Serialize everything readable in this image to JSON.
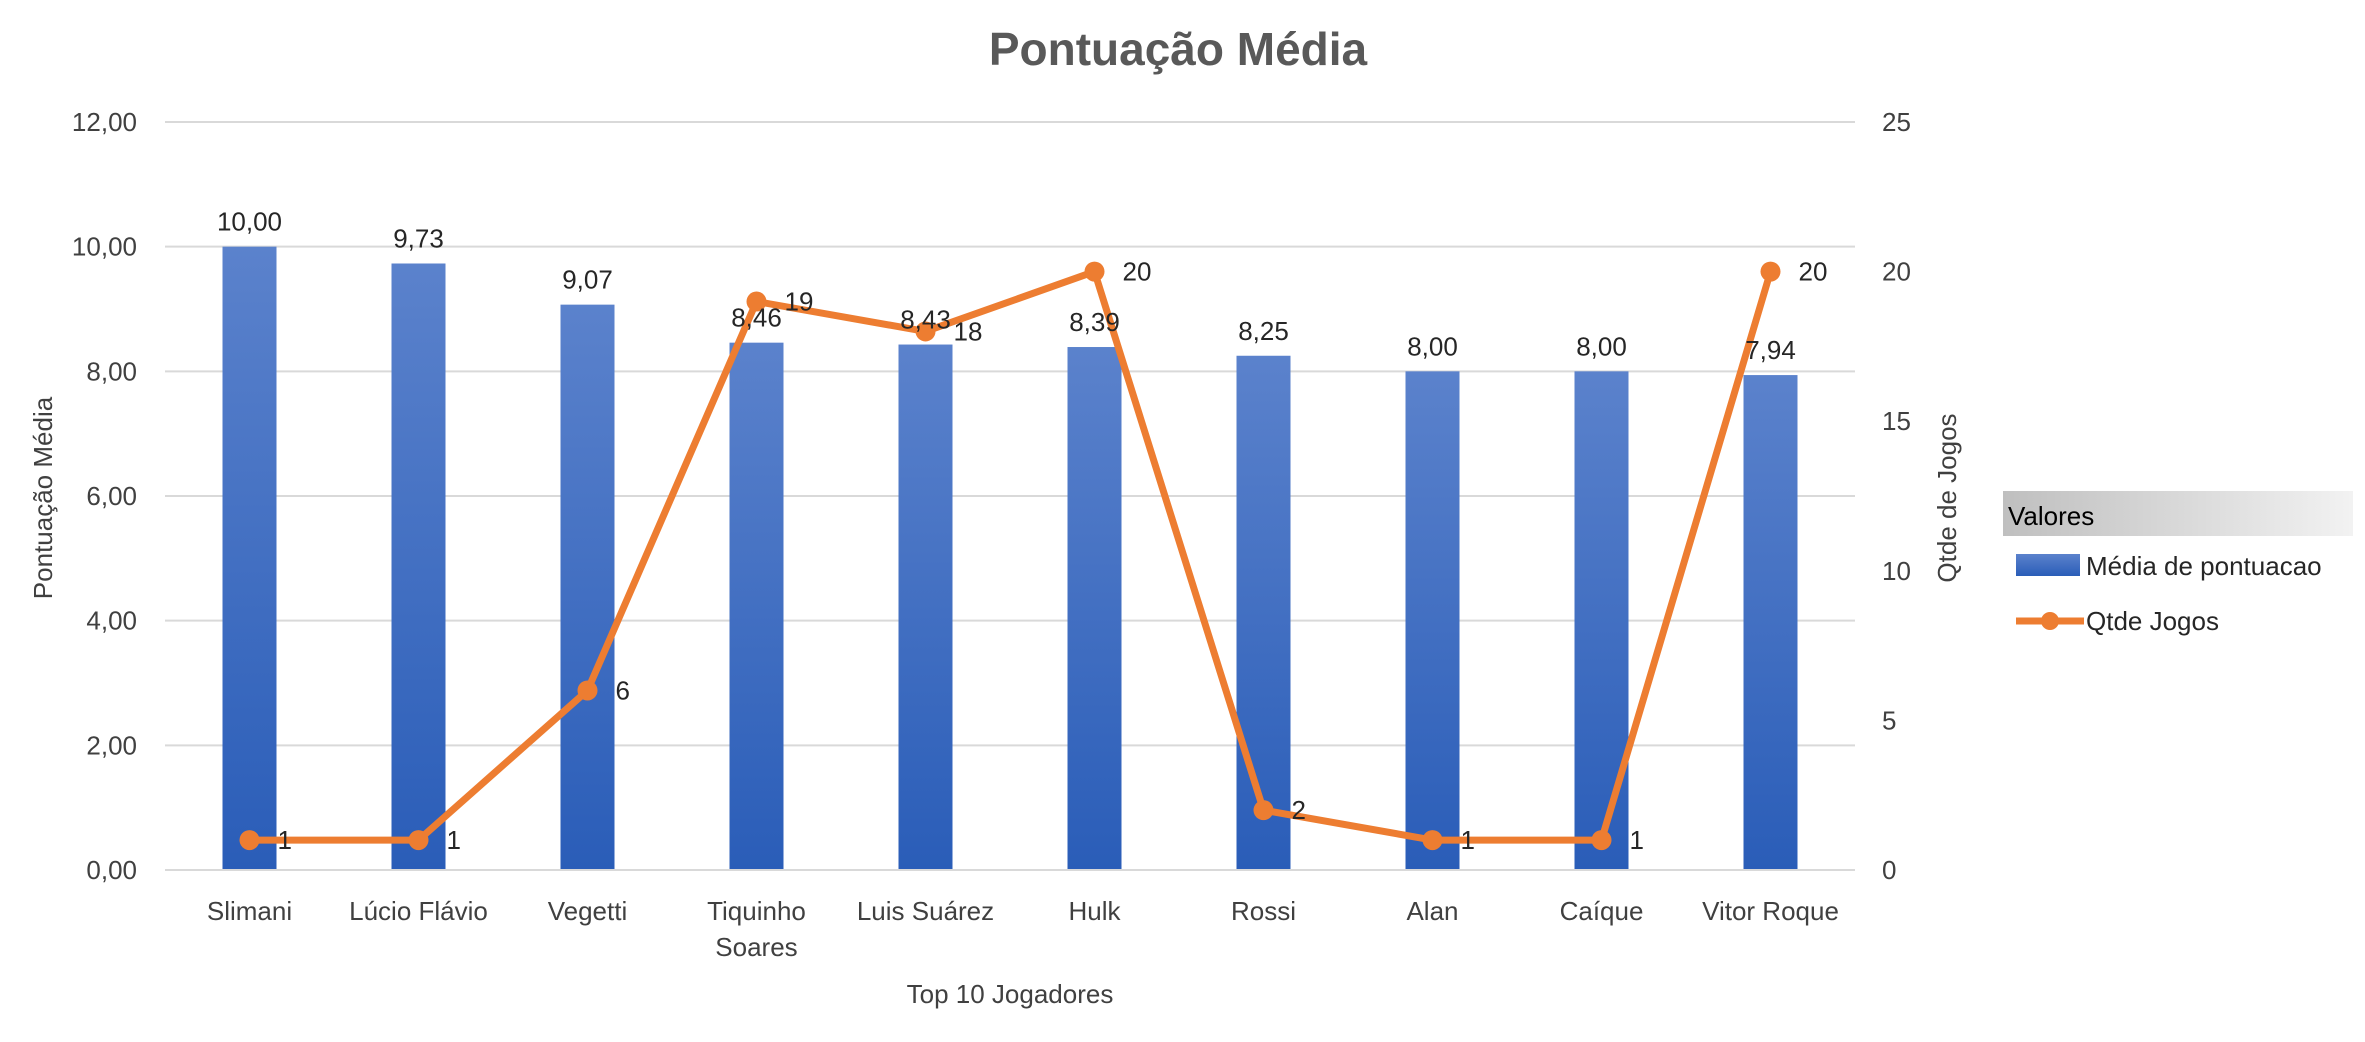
{
  "colors": {
    "bar_top": "#5B82CC",
    "bar_bottom": "#2A5DB8",
    "line": "#ED7D31",
    "grid": "#D9D9D9",
    "legend_header_start": "#BFBFBF",
    "legend_header_end": "#F2F2F2"
  },
  "chart_data": {
    "type": "bar",
    "title": "Pontuação Média",
    "xlabel": "Top 10 Jogadores",
    "ylabel": "Pontuação Média",
    "y2label": "Qtde de Jogos",
    "categories": [
      "Slimani",
      "Lúcio Flávio",
      "Vegetti",
      "Tiquinho Soares",
      "Luis Suárez",
      "Hulk",
      "Rossi",
      "Alan",
      "Caíque",
      "Vitor Roque"
    ],
    "category_lines": [
      [
        "Slimani"
      ],
      [
        "Lúcio Flávio"
      ],
      [
        "Vegetti"
      ],
      [
        "Tiquinho",
        "Soares"
      ],
      [
        "Luis Suárez"
      ],
      [
        "Hulk"
      ],
      [
        "Rossi"
      ],
      [
        "Alan"
      ],
      [
        "Caíque"
      ],
      [
        "Vitor Roque"
      ]
    ],
    "series": [
      {
        "name": "Média de pontuacao",
        "type": "bar",
        "axis": "left",
        "values": [
          10.0,
          9.73,
          9.07,
          8.46,
          8.43,
          8.39,
          8.25,
          8.0,
          8.0,
          7.94
        ],
        "labels": [
          "10,00",
          "9,73",
          "9,07",
          "8,46",
          "8,43",
          "8,39",
          "8,25",
          "8,00",
          "8,00",
          "7,94"
        ]
      },
      {
        "name": "Qtde Jogos",
        "type": "line",
        "axis": "right",
        "values": [
          1,
          1,
          6,
          19,
          18,
          20,
          2,
          1,
          1,
          20
        ],
        "labels": [
          "1",
          "1",
          "6",
          "19",
          "18",
          "20",
          "2",
          "1",
          "1",
          "20"
        ]
      }
    ],
    "ylim": [
      0,
      12
    ],
    "yticks": [
      "0,00",
      "2,00",
      "4,00",
      "6,00",
      "8,00",
      "10,00",
      "12,00"
    ],
    "y2lim": [
      0,
      25
    ],
    "y2ticks": [
      "0",
      "5",
      "10",
      "15",
      "20",
      "25"
    ],
    "grid": true,
    "legend": {
      "title": "Valores",
      "position": "right"
    }
  }
}
